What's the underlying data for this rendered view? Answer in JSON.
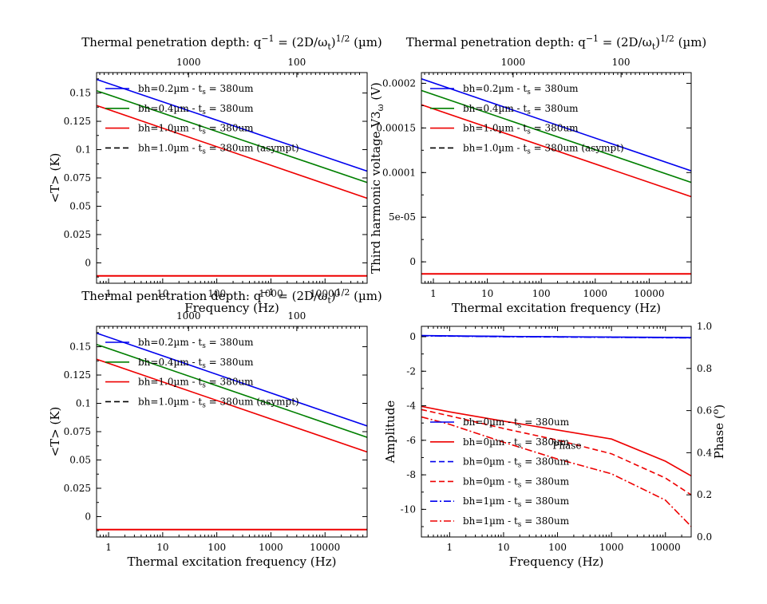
{
  "colors": {
    "blue": "#0000ee",
    "green": "#007f00",
    "red": "#ee0000",
    "black": "#000000"
  },
  "chart_data": [
    {
      "type": "line",
      "title": "Thermal penetration depth: q⁻¹ = (2D/ωt)¹ᐐ² (µm)",
      "title_parts": [
        "Thermal penetration depth: q",
        "−1",
        " = (2D/ω",
        "t",
        ")",
        "1/2",
        " (µm)"
      ],
      "xlabel": "Frequency (Hz)",
      "ylabel": "<T> (K)",
      "x_scale": "log",
      "xlim": [
        0.6,
        60000
      ],
      "ylim": [
        -0.018,
        0.168
      ],
      "x_ticks": [
        {
          "v": 1,
          "label": "1"
        },
        {
          "v": 10,
          "label": "10"
        },
        {
          "v": 100,
          "label": "100"
        },
        {
          "v": 1000,
          "label": "1000"
        },
        {
          "v": 10000,
          "label": "10000"
        }
      ],
      "x_tick_labels_hidden": true,
      "y_ticks": [
        {
          "v": 0,
          "label": "0"
        },
        {
          "v": 0.025,
          "label": "0.025"
        },
        {
          "v": 0.05,
          "label": "0.05"
        },
        {
          "v": 0.075,
          "label": "0.075"
        },
        {
          "v": 0.1,
          "label": "0.1"
        },
        {
          "v": 0.125,
          "label": "0.125"
        },
        {
          "v": 0.15,
          "label": "0.15"
        }
      ],
      "top_ticks": [
        {
          "v": 1000,
          "label": "1000"
        },
        {
          "v": 100,
          "label": "100"
        }
      ],
      "top_pos": [
        0.34,
        0.74
      ],
      "hline": -0.0115,
      "legend": "top-left",
      "series": [
        {
          "name": "bh=0.2µm - t",
          "sub": "s",
          "tail": " = 380um",
          "color": "blue",
          "style": "solid",
          "x": [
            0.6,
            60000
          ],
          "y": [
            0.162,
            0.081
          ]
        },
        {
          "name": "bh=0.4µm - t",
          "sub": "s",
          "tail": " = 380um",
          "color": "green",
          "style": "solid",
          "x": [
            0.6,
            60000
          ],
          "y": [
            0.152,
            0.071
          ]
        },
        {
          "name": "bh=1.0µm - t",
          "sub": "s",
          "tail": " = 380um",
          "color": "red",
          "style": "solid",
          "x": [
            0.6,
            60000
          ],
          "y": [
            0.139,
            0.057
          ]
        },
        {
          "name": "bh=1.0µm -  t",
          "sub": "s",
          "tail": " = 380um  (asympt)",
          "color": "black",
          "style": "dash",
          "x": [],
          "y": []
        }
      ]
    },
    {
      "type": "line",
      "title_parts": [
        "Thermal penetration depth: q",
        "−1",
        " = (2D/ω",
        "t",
        ")",
        "1/2",
        " (µm)"
      ],
      "xlabel": "Thermal excitation frequency (Hz)",
      "ylabel_parts": [
        "Third harmonic voltage V3",
        "ω",
        " (V)"
      ],
      "x_scale": "log",
      "xlim": [
        0.6,
        60000
      ],
      "ylim": [
        -2.4e-05,
        0.000212
      ],
      "x_ticks": [
        {
          "v": 1,
          "label": "1"
        },
        {
          "v": 10,
          "label": "10"
        },
        {
          "v": 100,
          "label": "100"
        },
        {
          "v": 1000,
          "label": "1000"
        },
        {
          "v": 10000,
          "label": "10000"
        }
      ],
      "y_ticks": [
        {
          "v": 0,
          "label": "0"
        },
        {
          "v": 5e-05,
          "label": "5e-05"
        },
        {
          "v": 0.0001,
          "label": "0.0001"
        },
        {
          "v": 0.00015,
          "label": "0.00015"
        },
        {
          "v": 0.0002,
          "label": "0.0002"
        }
      ],
      "top_ticks": [
        {
          "v": 1000,
          "label": "1000"
        },
        {
          "v": 100,
          "label": "100"
        }
      ],
      "top_pos": [
        0.34,
        0.74
      ],
      "hline": -1.35e-05,
      "legend": "top-left",
      "series": [
        {
          "name": "bh=0.2µm - t",
          "sub": "s",
          "tail": " = 380um",
          "color": "blue",
          "style": "solid",
          "x": [
            0.6,
            60000
          ],
          "y": [
            0.000205,
            0.000102
          ]
        },
        {
          "name": "bh=0.4µm - t",
          "sub": "s",
          "tail": " = 380um",
          "color": "green",
          "style": "solid",
          "x": [
            0.6,
            60000
          ],
          "y": [
            0.000192,
            8.9e-05
          ]
        },
        {
          "name": "bh=1.0µm - t",
          "sub": "s",
          "tail": " = 380um",
          "color": "red",
          "style": "solid",
          "x": [
            0.6,
            60000
          ],
          "y": [
            0.000176,
            7.3e-05
          ]
        },
        {
          "name": "bh=1.0µm -  t",
          "sub": "s",
          "tail": " = 380um (asympt)",
          "color": "black",
          "style": "dash",
          "x": [],
          "y": []
        }
      ]
    },
    {
      "type": "line",
      "title_parts": [
        "Thermal penetration depth: q",
        "−1",
        " = (2D/ω",
        "t",
        ")",
        "1/2",
        " (µm)"
      ],
      "xlabel": "Thermal excitation frequency (Hz)",
      "ylabel": "<T> (K)",
      "x_scale": "log",
      "xlim": [
        0.6,
        60000
      ],
      "ylim": [
        -0.018,
        0.168
      ],
      "x_ticks": [
        {
          "v": 1,
          "label": "1"
        },
        {
          "v": 10,
          "label": "10"
        },
        {
          "v": 100,
          "label": "100"
        },
        {
          "v": 1000,
          "label": "1000"
        },
        {
          "v": 10000,
          "label": "10000"
        }
      ],
      "y_ticks": [
        {
          "v": 0,
          "label": "0"
        },
        {
          "v": 0.025,
          "label": "0.025"
        },
        {
          "v": 0.05,
          "label": "0.05"
        },
        {
          "v": 0.075,
          "label": "0.075"
        },
        {
          "v": 0.1,
          "label": "0.1"
        },
        {
          "v": 0.125,
          "label": "0.125"
        },
        {
          "v": 0.15,
          "label": "0.15"
        }
      ],
      "top_ticks": [
        {
          "v": 1000,
          "label": "1000"
        },
        {
          "v": 100,
          "label": "100"
        }
      ],
      "top_pos": [
        0.34,
        0.74
      ],
      "hline": -0.0115,
      "legend": "top-left",
      "series": [
        {
          "name": "bh=0.2µm - t",
          "sub": "s",
          "tail": " = 380um",
          "color": "blue",
          "style": "solid",
          "x": [
            0.6,
            60000
          ],
          "y": [
            0.162,
            0.08
          ]
        },
        {
          "name": "bh=0.4µm - t",
          "sub": "s",
          "tail": " = 380um",
          "color": "green",
          "style": "solid",
          "x": [
            0.6,
            60000
          ],
          "y": [
            0.152,
            0.07
          ]
        },
        {
          "name": "bh=1.0µm - t",
          "sub": "s",
          "tail": " = 380um",
          "color": "red",
          "style": "solid",
          "x": [
            0.6,
            60000
          ],
          "y": [
            0.139,
            0.057
          ]
        },
        {
          "name": "bh=1.0µm -  t",
          "sub": "s",
          "tail": " = 380um  (asympt)",
          "color": "black",
          "style": "dash",
          "x": [],
          "y": []
        }
      ]
    },
    {
      "type": "line",
      "xlabel": "Frequency (Hz)",
      "ylabel": "Amplitude",
      "ylabel_color": "blue",
      "y2label_parts": [
        "Phase (",
        "o",
        ")"
      ],
      "y2label_color": "red",
      "x_scale": "log",
      "xlim": [
        0.3,
        30000
      ],
      "ylim": [
        -11.6,
        0.6
      ],
      "y2lim": [
        0,
        1
      ],
      "x_ticks": [
        {
          "v": 1,
          "label": "1"
        },
        {
          "v": 10,
          "label": "10"
        },
        {
          "v": 100,
          "label": "100"
        },
        {
          "v": 1000,
          "label": "1000"
        },
        {
          "v": 10000,
          "label": "10000"
        }
      ],
      "y_ticks": [
        {
          "v": 0,
          "label": "0"
        },
        {
          "v": -2,
          "label": "-2"
        },
        {
          "v": -4,
          "label": "-4"
        },
        {
          "v": -6,
          "label": "-6"
        },
        {
          "v": -8,
          "label": "-8"
        },
        {
          "v": -10,
          "label": "-10"
        }
      ],
      "y2_ticks": [
        {
          "v": 0,
          "label": "0.0"
        },
        {
          "v": 0.2,
          "label": "0.2"
        },
        {
          "v": 0.4,
          "label": "0.4"
        },
        {
          "v": 0.6,
          "label": "0.6"
        },
        {
          "v": 0.8,
          "label": "0.8"
        },
        {
          "v": 1.0,
          "label": "1.0"
        }
      ],
      "annotation": "Phase",
      "annotation_at": [
        150,
        -6.5
      ],
      "legend": "lower-left",
      "series": [
        {
          "name": "bh=0µm - t",
          "sub": "s",
          "tail": " = 380um",
          "color": "blue",
          "style": "solid",
          "axis": "left",
          "x": [
            0.3,
            1,
            10,
            100,
            1000,
            10000,
            30000
          ],
          "y": [
            0.07,
            0.05,
            0.02,
            0.0,
            -0.02,
            -0.04,
            -0.05
          ]
        },
        {
          "name": "bh=0µm - t",
          "sub": "s",
          "tail": " = 380um",
          "color": "red",
          "style": "solid",
          "axis": "right",
          "x": [
            0.3,
            1,
            10,
            100,
            1000,
            10000,
            30000
          ],
          "y": [
            0.62,
            0.594,
            0.55,
            0.508,
            0.465,
            0.36,
            0.29
          ]
        },
        {
          "name": "bh=0µm - t",
          "sub": "s",
          "tail": " = 380um",
          "color": "blue",
          "style": "dash",
          "axis": "left",
          "x": [
            0.3,
            1,
            10,
            100,
            1000,
            10000,
            30000
          ],
          "y": [
            0.06,
            0.04,
            0.01,
            -0.01,
            -0.03,
            -0.05,
            -0.06
          ]
        },
        {
          "name": "bh=0µm - t",
          "sub": "s",
          "tail": " = 380um",
          "color": "red",
          "style": "dash",
          "axis": "right",
          "x": [
            0.3,
            1,
            10,
            100,
            1000,
            10000,
            30000
          ],
          "y": [
            0.605,
            0.575,
            0.515,
            0.46,
            0.395,
            0.28,
            0.2
          ]
        },
        {
          "name": "bh=1µm - t",
          "sub": "s",
          "tail": " = 380um",
          "color": "blue",
          "style": "dashdot",
          "axis": "left",
          "x": [
            0.3,
            1,
            10,
            100,
            1000,
            10000,
            30000
          ],
          "y": [
            0.05,
            0.03,
            0.0,
            -0.02,
            -0.04,
            -0.06,
            -0.07
          ]
        },
        {
          "name": "bh=1µm - t",
          "sub": "s",
          "tail": " = 380um",
          "color": "red",
          "style": "dashdot",
          "axis": "right",
          "x": [
            0.3,
            1,
            10,
            100,
            1000,
            10000,
            30000
          ],
          "y": [
            0.57,
            0.535,
            0.45,
            0.37,
            0.3,
            0.175,
            0.05
          ]
        }
      ]
    }
  ]
}
